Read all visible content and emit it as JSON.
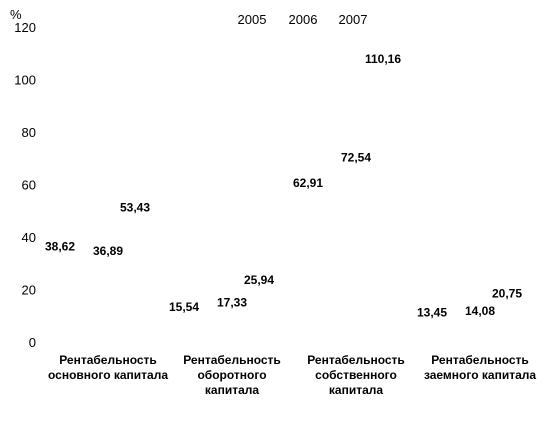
{
  "chart_data": {
    "type": "bar",
    "title": "",
    "xlabel": "",
    "ylabel": "%",
    "ylim": [
      0,
      120
    ],
    "yticks": [
      "0",
      "20",
      "40",
      "60",
      "80",
      "100",
      "120"
    ],
    "grid": false,
    "legend_position": "top",
    "categories": [
      [
        "Рентабельность",
        "основного капитала"
      ],
      [
        "Рентабельность",
        "оборотного",
        "капитала"
      ],
      [
        "Рентабельность",
        "собственного",
        "капитала"
      ],
      [
        "Рентабельность",
        "заемного капитала"
      ]
    ],
    "series": [
      {
        "name": "2005",
        "values": [
          38.62,
          15.54,
          62.91,
          13.45
        ],
        "labels": [
          "38,62",
          "15,54",
          "62,91",
          "13,45"
        ]
      },
      {
        "name": "2006",
        "values": [
          36.89,
          17.33,
          72.54,
          14.08
        ],
        "labels": [
          "36,89",
          "17,33",
          "72,54",
          "14,08"
        ]
      },
      {
        "name": "2007",
        "values": [
          53.43,
          25.94,
          110.16,
          20.75
        ],
        "labels": [
          "53,43",
          "25,94",
          "110,16",
          "20,75"
        ]
      }
    ]
  }
}
